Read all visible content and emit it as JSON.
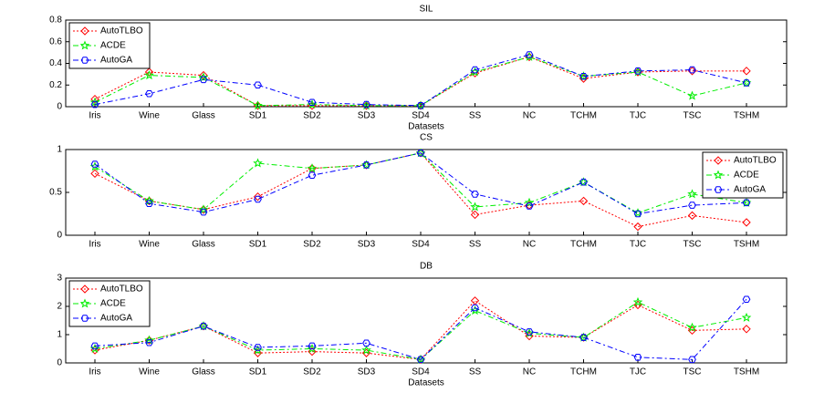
{
  "chart_data": [
    {
      "type": "line",
      "title": "SIL",
      "xlabel": "Datasets",
      "categories": [
        "Iris",
        "Wine",
        "Glass",
        "SD1",
        "SD2",
        "SD3",
        "SD4",
        "SS",
        "NC",
        "TCHM",
        "TJC",
        "TSC",
        "TSHM"
      ],
      "ylim": [
        0,
        0.8
      ],
      "yticks": [
        0,
        0.2,
        0.4,
        0.6,
        0.8
      ],
      "legend": "upper left",
      "series": [
        {
          "name": "AutoTLBO",
          "color": "#ff0000",
          "marker": "diamond",
          "linestyle": "dotted",
          "values": [
            0.07,
            0.32,
            0.29,
            0.01,
            0.01,
            0.01,
            0.01,
            0.31,
            0.46,
            0.26,
            0.32,
            0.33,
            0.33
          ]
        },
        {
          "name": "ACDE",
          "color": "#00ee00",
          "marker": "star",
          "linestyle": "dashdot",
          "values": [
            0.04,
            0.29,
            0.27,
            0.01,
            0.02,
            0.01,
            0.01,
            0.32,
            0.46,
            0.28,
            0.32,
            0.1,
            0.22
          ]
        },
        {
          "name": "AutoGA",
          "color": "#0000ff",
          "marker": "hexagon",
          "linestyle": "dashdot",
          "values": [
            0.02,
            0.12,
            0.25,
            0.2,
            0.04,
            0.02,
            0.01,
            0.34,
            0.48,
            0.28,
            0.33,
            0.34,
            0.22
          ]
        }
      ]
    },
    {
      "type": "line",
      "title": "CS",
      "categories": [
        "Iris",
        "Wine",
        "Glass",
        "SD1",
        "SD2",
        "SD3",
        "SD4",
        "SS",
        "NC",
        "TCHM",
        "TJC",
        "TSC",
        "TSHM"
      ],
      "ylim": [
        0,
        1
      ],
      "yticks": [
        0,
        0.5,
        1
      ],
      "legend": "upper right",
      "series": [
        {
          "name": "AutoTLBO",
          "color": "#ff0000",
          "marker": "diamond",
          "linestyle": "dotted",
          "values": [
            0.72,
            0.4,
            0.3,
            0.45,
            0.78,
            0.82,
            0.96,
            0.24,
            0.35,
            0.4,
            0.1,
            0.23,
            0.15
          ]
        },
        {
          "name": "ACDE",
          "color": "#00ee00",
          "marker": "star",
          "linestyle": "dashdot",
          "values": [
            0.8,
            0.4,
            0.3,
            0.84,
            0.78,
            0.82,
            0.96,
            0.33,
            0.38,
            0.62,
            0.26,
            0.48,
            0.38
          ]
        },
        {
          "name": "AutoGA",
          "color": "#0000ff",
          "marker": "hexagon",
          "linestyle": "dashdot",
          "values": [
            0.83,
            0.37,
            0.27,
            0.42,
            0.7,
            0.82,
            0.96,
            0.48,
            0.34,
            0.62,
            0.25,
            0.35,
            0.38
          ]
        }
      ]
    },
    {
      "type": "line",
      "title": "DB",
      "xlabel": "Datasets",
      "categories": [
        "Iris",
        "Wine",
        "Glass",
        "SD1",
        "SD2",
        "SD3",
        "SD4",
        "SS",
        "NC",
        "TCHM",
        "TJC",
        "TSC",
        "TSHM"
      ],
      "ylim": [
        0,
        3
      ],
      "yticks": [
        0,
        1,
        2,
        3
      ],
      "legend": "upper left",
      "series": [
        {
          "name": "AutoTLBO",
          "color": "#ff0000",
          "marker": "diamond",
          "linestyle": "dotted",
          "values": [
            0.45,
            0.8,
            1.3,
            0.35,
            0.4,
            0.35,
            0.12,
            2.2,
            0.95,
            0.9,
            2.05,
            1.15,
            1.2
          ]
        },
        {
          "name": "ACDE",
          "color": "#00ee00",
          "marker": "star",
          "linestyle": "dashdot",
          "values": [
            0.5,
            0.8,
            1.3,
            0.45,
            0.5,
            0.45,
            0.12,
            1.85,
            1.05,
            0.9,
            2.15,
            1.25,
            1.6
          ]
        },
        {
          "name": "AutoGA",
          "color": "#0000ff",
          "marker": "hexagon",
          "linestyle": "dashdot",
          "values": [
            0.6,
            0.72,
            1.3,
            0.55,
            0.6,
            0.7,
            0.12,
            1.95,
            1.1,
            0.9,
            0.2,
            0.12,
            2.25
          ]
        }
      ]
    }
  ]
}
